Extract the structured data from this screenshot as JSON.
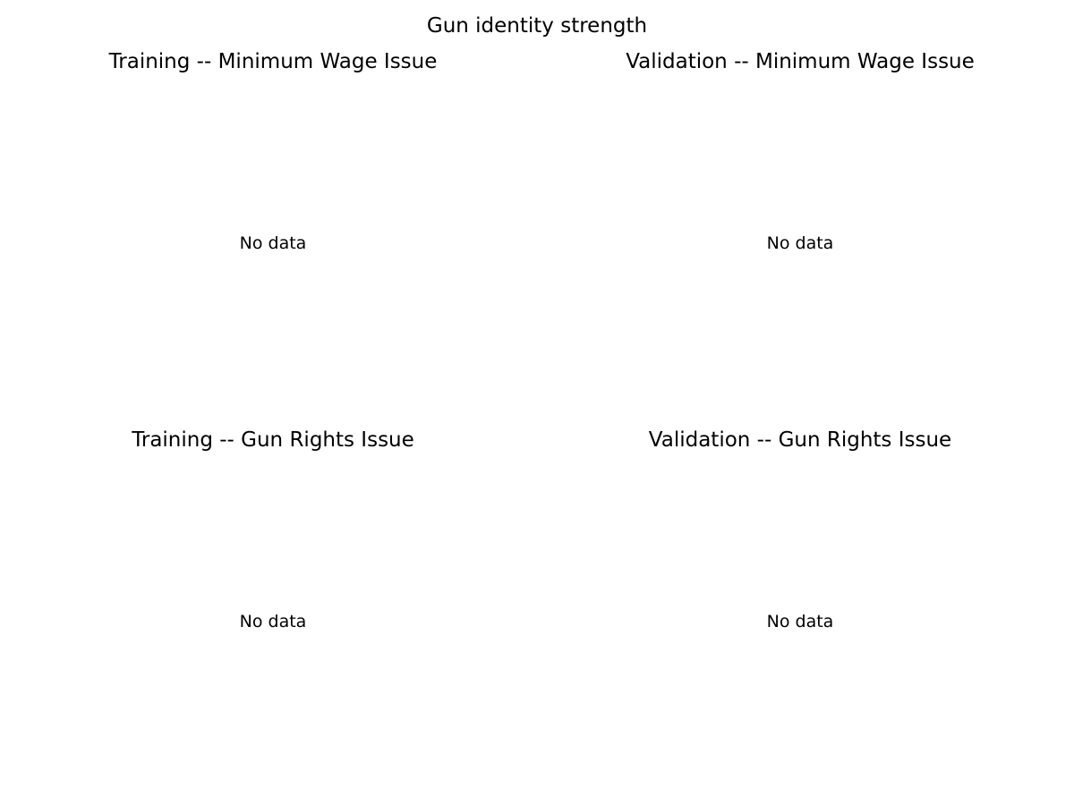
{
  "figure": {
    "title": "Gun identity strength"
  },
  "chart_data": [
    {
      "type": "bar",
      "title": "Training -- Minimum Wage Issue",
      "message": "No data",
      "categories": [],
      "series": []
    },
    {
      "type": "bar",
      "title": "Validation -- Minimum Wage Issue",
      "message": "No data",
      "categories": [],
      "series": []
    },
    {
      "type": "bar",
      "title": "Training -- Gun Rights Issue",
      "message": "No data",
      "categories": [],
      "series": []
    },
    {
      "type": "bar",
      "title": "Validation -- Gun Rights Issue",
      "message": "No data",
      "categories": [],
      "series": []
    }
  ]
}
